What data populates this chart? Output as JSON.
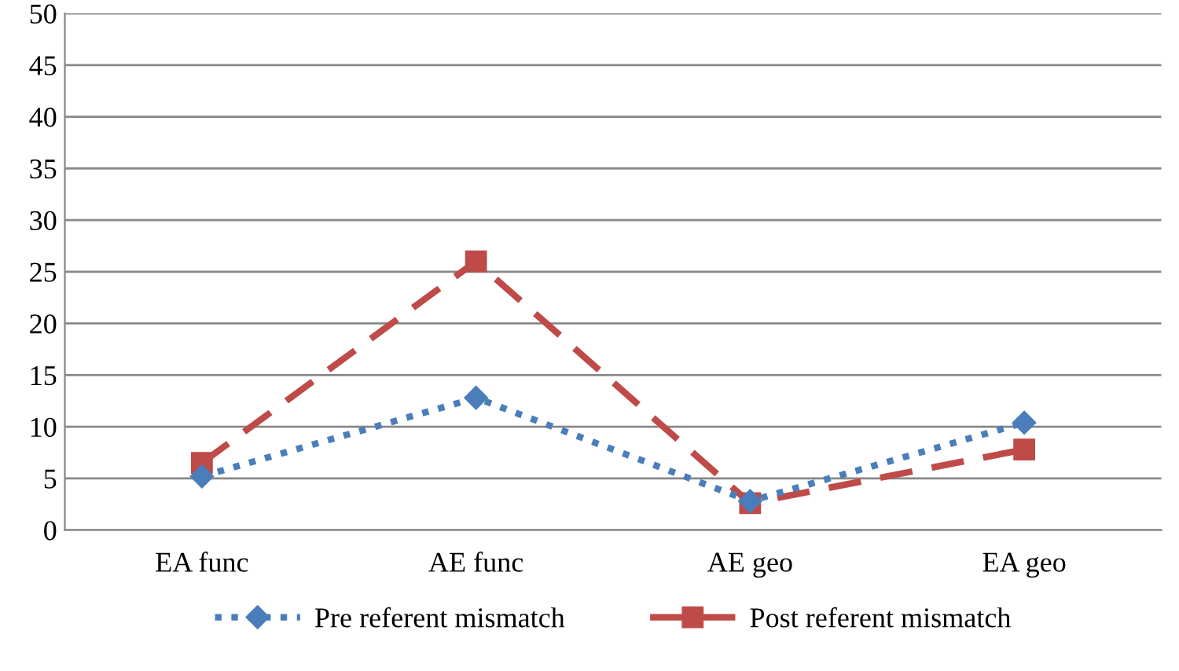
{
  "chart_data": {
    "type": "line",
    "categories": [
      "EA func",
      "AE func",
      "AE geo",
      "EA geo"
    ],
    "series": [
      {
        "name": "Pre referent mismatch",
        "color": "#4a7ebb",
        "values": [
          5.2,
          12.8,
          2.8,
          10.4
        ],
        "marker": "diamond",
        "line_style": "dotted"
      },
      {
        "name": "Post referent mismatch",
        "color": "#be4b48",
        "values": [
          6.5,
          26.0,
          2.6,
          7.8
        ],
        "marker": "square",
        "line_style": "dashed"
      }
    ],
    "ylim": [
      0,
      50
    ],
    "yticks": [
      0,
      5,
      10,
      15,
      20,
      25,
      30,
      35,
      40,
      45,
      50
    ],
    "grid": "y",
    "legend": "bottom"
  }
}
